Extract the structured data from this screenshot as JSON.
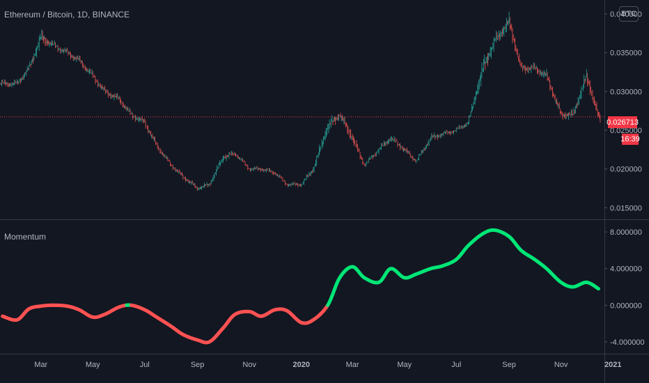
{
  "header": {
    "title": "Ethereum / Bitcoin, 1D, BINANCE"
  },
  "currency_button": "BTC",
  "last_price_label": "0.026713",
  "countdown_label": "16:39",
  "colors": {
    "background": "#131722",
    "up": "#26a69a",
    "down": "#ef5350",
    "momentum_up": "#00e676",
    "momentum_down": "#ff5252",
    "price_tag": "#f23645"
  },
  "chart_data": [
    {
      "type": "candlestick",
      "title": "Ethereum / Bitcoin, 1D, BINANCE",
      "y_ticks": [
        "0.040000",
        "0.035000",
        "0.030000",
        "0.025000",
        "0.020000",
        "0.015000"
      ],
      "ylim": [
        0.0135,
        0.0418
      ],
      "last_price": 0.026713,
      "x": [
        "2019-02-01",
        "2019-02-15",
        "2019-03-01",
        "2019-03-15",
        "2019-04-01",
        "2019-04-15",
        "2019-05-01",
        "2019-05-15",
        "2019-06-01",
        "2019-06-15",
        "2019-07-01",
        "2019-07-15",
        "2019-08-01",
        "2019-08-15",
        "2019-09-01",
        "2019-09-15",
        "2019-10-01",
        "2019-10-15",
        "2019-11-01",
        "2019-11-15",
        "2019-12-01",
        "2019-12-15",
        "2020-01-01",
        "2020-01-15",
        "2020-02-01",
        "2020-02-15",
        "2020-03-01",
        "2020-03-15",
        "2020-04-01",
        "2020-04-15",
        "2020-05-01",
        "2020-05-15",
        "2020-06-01",
        "2020-06-15",
        "2020-07-01",
        "2020-07-15",
        "2020-08-01",
        "2020-08-15",
        "2020-09-01",
        "2020-09-15",
        "2020-10-01",
        "2020-10-15",
        "2020-11-01",
        "2020-11-15",
        "2020-12-01",
        "2020-12-15"
      ],
      "close": [
        0.031,
        0.033,
        0.037,
        0.036,
        0.035,
        0.034,
        0.032,
        0.03,
        0.029,
        0.027,
        0.026,
        0.023,
        0.0205,
        0.019,
        0.0175,
        0.018,
        0.0215,
        0.022,
        0.02,
        0.02,
        0.0195,
        0.018,
        0.018,
        0.02,
        0.0255,
        0.027,
        0.024,
        0.0205,
        0.0225,
        0.024,
        0.0225,
        0.021,
        0.024,
        0.0245,
        0.025,
        0.026,
        0.033,
        0.0365,
        0.039,
        0.033,
        0.033,
        0.032,
        0.027,
        0.027,
        0.032,
        0.0267
      ],
      "high": [
        0.0325,
        0.0345,
        0.04,
        0.037,
        0.036,
        0.035,
        0.0335,
        0.0315,
        0.03,
        0.0285,
        0.0275,
        0.0245,
        0.0215,
        0.02,
        0.0182,
        0.0195,
        0.0225,
        0.0228,
        0.021,
        0.021,
        0.0205,
        0.019,
        0.0188,
        0.0215,
        0.0275,
        0.0285,
        0.0275,
        0.0215,
        0.0235,
        0.0255,
        0.024,
        0.022,
        0.0245,
        0.0255,
        0.0258,
        0.0268,
        0.0365,
        0.0385,
        0.0405,
        0.0365,
        0.0345,
        0.0335,
        0.03,
        0.03,
        0.0335,
        0.0315
      ],
      "low": [
        0.03,
        0.0315,
        0.0325,
        0.0345,
        0.0335,
        0.0325,
        0.03,
        0.0285,
        0.027,
        0.0255,
        0.024,
        0.0215,
        0.0195,
        0.0175,
        0.0162,
        0.0172,
        0.018,
        0.021,
        0.0192,
        0.0192,
        0.0185,
        0.0173,
        0.017,
        0.018,
        0.02,
        0.0245,
        0.0205,
        0.02,
        0.0205,
        0.022,
        0.021,
        0.0205,
        0.021,
        0.0235,
        0.024,
        0.0248,
        0.026,
        0.0325,
        0.033,
        0.032,
        0.031,
        0.029,
        0.026,
        0.0255,
        0.0265,
        0.0262
      ]
    },
    {
      "type": "line",
      "title": "Momentum",
      "y_ticks": [
        "8.000000",
        "4.000000",
        "0.000000",
        "-4.000000"
      ],
      "ylim": [
        -5.3,
        9.3
      ],
      "x": [
        "2019-01-15",
        "2019-02-01",
        "2019-02-15",
        "2019-03-01",
        "2019-03-15",
        "2019-04-01",
        "2019-04-15",
        "2019-05-01",
        "2019-05-15",
        "2019-06-01",
        "2019-06-15",
        "2019-07-01",
        "2019-07-15",
        "2019-08-01",
        "2019-08-15",
        "2019-09-01",
        "2019-09-15",
        "2019-10-01",
        "2019-10-15",
        "2019-11-01",
        "2019-11-15",
        "2019-12-01",
        "2019-12-15",
        "2020-01-01",
        "2020-01-15",
        "2020-02-01",
        "2020-02-15",
        "2020-03-01",
        "2020-03-15",
        "2020-04-01",
        "2020-04-15",
        "2020-05-01",
        "2020-05-15",
        "2020-06-01",
        "2020-06-15",
        "2020-07-01",
        "2020-07-15",
        "2020-08-01",
        "2020-08-15",
        "2020-09-01",
        "2020-09-15",
        "2020-10-01",
        "2020-10-15",
        "2020-11-01",
        "2020-11-15",
        "2020-12-01",
        "2020-12-15"
      ],
      "values": [
        -1.2,
        -1.6,
        -0.4,
        -0.1,
        0.0,
        -0.1,
        -0.5,
        -1.3,
        -1.0,
        -0.2,
        0.0,
        -0.5,
        -1.3,
        -2.3,
        -3.2,
        -3.8,
        -4.0,
        -2.5,
        -1.0,
        -0.7,
        -1.2,
        -0.5,
        -0.6,
        -1.9,
        -1.6,
        0.0,
        3.0,
        4.2,
        3.0,
        2.5,
        4.0,
        3.0,
        3.4,
        4.0,
        4.3,
        5.0,
        6.5,
        7.8,
        8.2,
        7.5,
        6.0,
        5.0,
        4.0,
        2.5,
        2.0,
        2.5,
        1.8
      ],
      "up_color": "#00e676",
      "down_color": "#ff5252"
    }
  ],
  "x_axis_labels": [
    {
      "label": "Mar",
      "date": "2019-03-01"
    },
    {
      "label": "May",
      "date": "2019-05-01"
    },
    {
      "label": "Jul",
      "date": "2019-07-01"
    },
    {
      "label": "Sep",
      "date": "2019-09-01"
    },
    {
      "label": "Nov",
      "date": "2019-11-01"
    },
    {
      "label": "2020",
      "date": "2020-01-01"
    },
    {
      "label": "Mar",
      "date": "2020-03-01"
    },
    {
      "label": "May",
      "date": "2020-05-01"
    },
    {
      "label": "Jul",
      "date": "2020-07-01"
    },
    {
      "label": "Sep",
      "date": "2020-09-01"
    },
    {
      "label": "Nov",
      "date": "2020-11-01"
    },
    {
      "label": "2021",
      "date": "2021-01-01"
    }
  ]
}
